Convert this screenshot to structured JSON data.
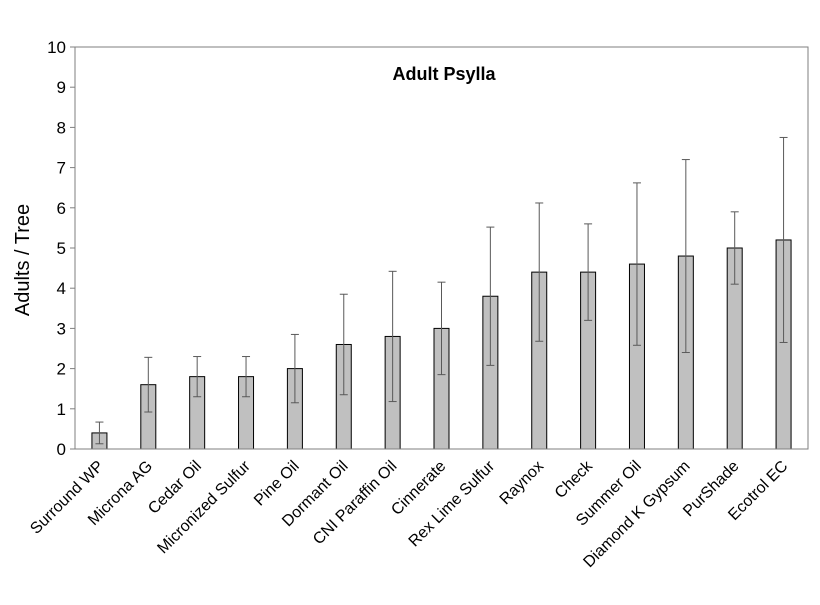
{
  "chart_data": {
    "type": "bar",
    "title": "Adult Psylla",
    "xlabel": "",
    "ylabel": "Adults / Tree",
    "ylim": [
      0,
      10
    ],
    "yticks": [
      "0",
      "1",
      "2",
      "3",
      "4",
      "5",
      "6",
      "7",
      "8",
      "9",
      "10"
    ],
    "grid": false,
    "categories": [
      "Surround WP",
      "Microna AG",
      "Cedar Oil",
      "Micronized Sulfur",
      "Pine Oil",
      "Dormant Oil",
      "CNI Paraffin Oil",
      "Cinnerate",
      "Rex Lime Sulfur",
      "Raynox",
      "Check",
      "Summer Oil",
      "Diamond K Gypsum",
      "PurShade",
      "Ecotrol EC"
    ],
    "values": [
      0.4,
      1.6,
      1.8,
      1.8,
      2.0,
      2.6,
      2.8,
      3.0,
      3.8,
      4.4,
      4.4,
      4.6,
      4.8,
      5.0,
      5.2
    ],
    "error_bars": [
      0.27,
      0.68,
      0.5,
      0.5,
      0.85,
      1.25,
      1.62,
      1.15,
      1.72,
      1.72,
      1.2,
      2.02,
      2.4,
      0.9,
      2.55
    ],
    "colors": {
      "bar_fill": "#c0c0c0",
      "bar_stroke": "#000000",
      "error_bar": "#595959"
    }
  }
}
